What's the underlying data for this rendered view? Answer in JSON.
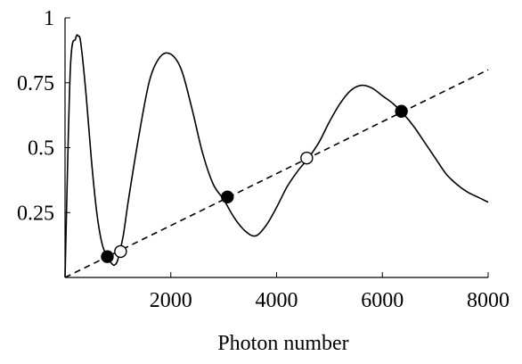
{
  "chart_data": {
    "type": "line",
    "title": "",
    "xlabel": "Photon number",
    "ylabel": "",
    "xlim": [
      0,
      8000
    ],
    "ylim": [
      0,
      1
    ],
    "x_ticks": [
      2000,
      4000,
      6000,
      8000
    ],
    "x_tick_labels": [
      "2000",
      "4000",
      "6000",
      "8000"
    ],
    "y_ticks": [
      0.25,
      0.5,
      0.75,
      1
    ],
    "y_tick_labels": [
      "0.25",
      "0.5",
      "0.75",
      "1"
    ],
    "grid": false,
    "legend": "none",
    "series": [
      {
        "style": "solid",
        "color": "#000000",
        "x": [
          0,
          100,
          200,
          250,
          300,
          400,
          500,
          600,
          700,
          800,
          900,
          950,
          1000,
          1100,
          1200,
          1400,
          1600,
          1800,
          2000,
          2200,
          2400,
          2600,
          2800,
          3000,
          3200,
          3400,
          3600,
          3800,
          4000,
          4200,
          4400,
          4600,
          4800,
          5000,
          5200,
          5400,
          5600,
          5800,
          6000,
          6200,
          6400,
          6600,
          6800,
          7000,
          7200,
          7400,
          7600,
          7800,
          8000
        ],
        "y": [
          0.0,
          0.8,
          0.92,
          0.93,
          0.9,
          0.7,
          0.45,
          0.25,
          0.13,
          0.08,
          0.05,
          0.05,
          0.07,
          0.16,
          0.3,
          0.55,
          0.76,
          0.85,
          0.86,
          0.8,
          0.65,
          0.48,
          0.36,
          0.3,
          0.23,
          0.18,
          0.16,
          0.2,
          0.27,
          0.35,
          0.41,
          0.46,
          0.52,
          0.6,
          0.67,
          0.72,
          0.74,
          0.73,
          0.7,
          0.67,
          0.63,
          0.58,
          0.52,
          0.46,
          0.4,
          0.36,
          0.33,
          0.31,
          0.29
        ]
      },
      {
        "style": "dashed",
        "color": "#000000",
        "x": [
          0,
          8000
        ],
        "y": [
          0.0,
          0.8
        ]
      }
    ],
    "points": [
      {
        "x": 800,
        "y": 0.08,
        "marker": "filled"
      },
      {
        "x": 1050,
        "y": 0.1,
        "marker": "open"
      },
      {
        "x": 3070,
        "y": 0.31,
        "marker": "filled"
      },
      {
        "x": 4570,
        "y": 0.46,
        "marker": "open"
      },
      {
        "x": 6360,
        "y": 0.64,
        "marker": "filled"
      }
    ]
  }
}
